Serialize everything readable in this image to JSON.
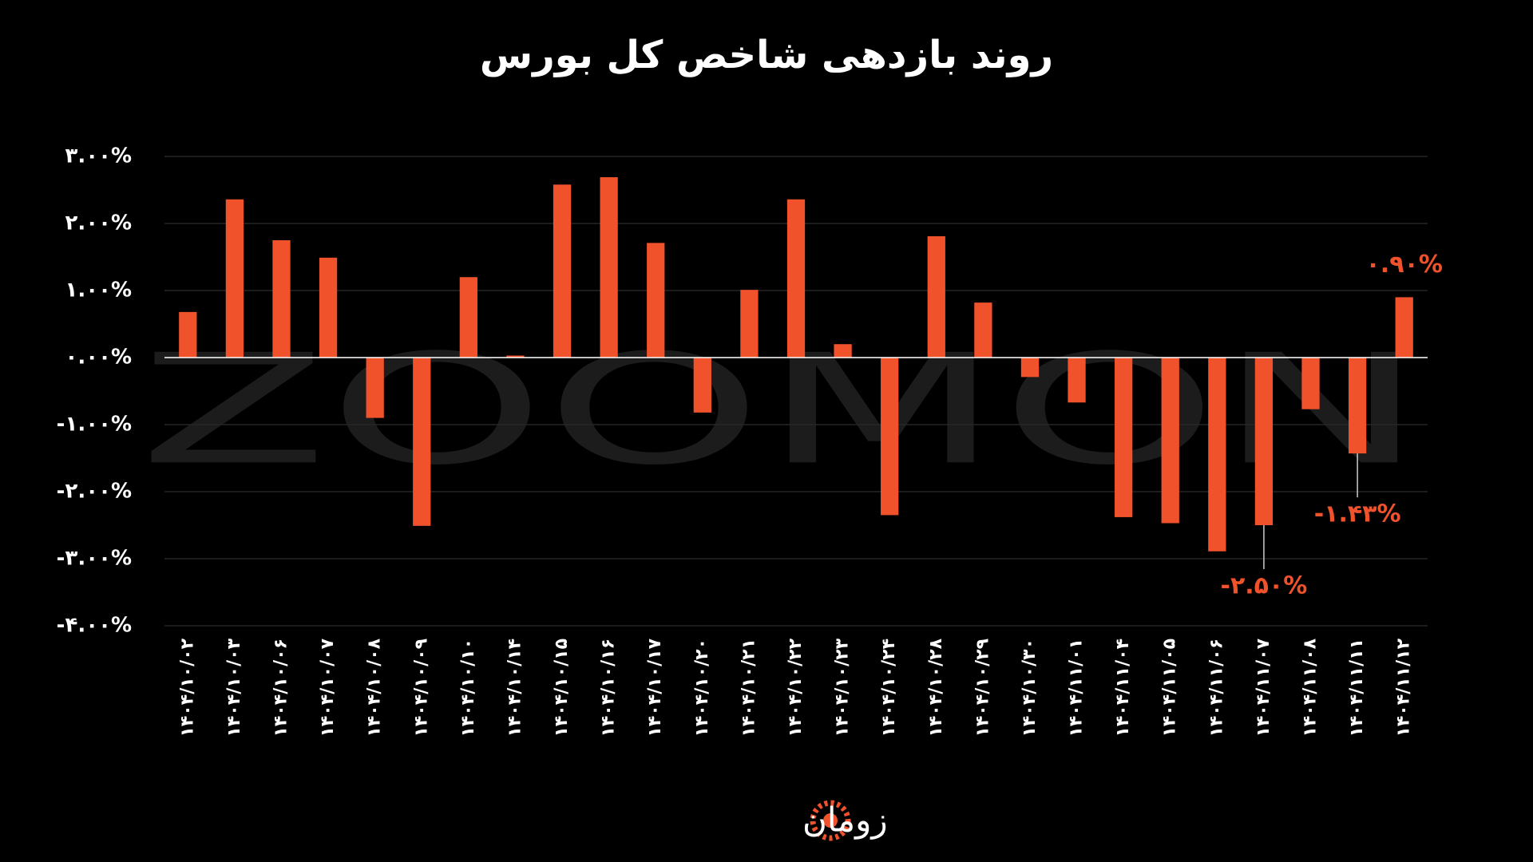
{
  "chart_data": {
    "type": "bar",
    "title": "روند بازدهی شاخص کل بورس",
    "watermark": "ZOOMON",
    "brand": "زومان",
    "color": "#f0522c",
    "grid": true,
    "categories": [
      "۱۴۰۴/۱۰/۰۲",
      "۱۴۰۴/۱۰/۰۳",
      "۱۴۰۴/۱۰/۰۶",
      "۱۴۰۴/۱۰/۰۷",
      "۱۴۰۴/۱۰/۰۸",
      "۱۴۰۴/۱۰/۰۹",
      "۱۴۰۴/۱۰/۱۰",
      "۱۴۰۴/۱۰/۱۴",
      "۱۴۰۴/۱۰/۱۵",
      "۱۴۰۴/۱۰/۱۶",
      "۱۴۰۴/۱۰/۱۷",
      "۱۴۰۴/۱۰/۲۰",
      "۱۴۰۴/۱۰/۲۱",
      "۱۴۰۴/۱۰/۲۲",
      "۱۴۰۴/۱۰/۲۳",
      "۱۴۰۴/۱۰/۲۴",
      "۱۴۰۴/۱۰/۲۸",
      "۱۴۰۴/۱۰/۲۹",
      "۱۴۰۴/۱۰/۳۰",
      "۱۴۰۴/۱۱/۰۱",
      "۱۴۰۴/۱۱/۰۴",
      "۱۴۰۴/۱۱/۰۵",
      "۱۴۰۴/۱۱/۰۶",
      "۱۴۰۴/۱۱/۰۷",
      "۱۴۰۴/۱۱/۰۸",
      "۱۴۰۴/۱۱/۱۱",
      "۱۴۰۴/۱۱/۱۲"
    ],
    "values": [
      0.68,
      2.36,
      1.75,
      1.49,
      -0.9,
      -2.51,
      1.2,
      0.03,
      2.58,
      2.69,
      1.71,
      -0.82,
      1.01,
      2.36,
      0.2,
      -2.35,
      1.81,
      0.82,
      -0.29,
      -0.67,
      -2.38,
      -2.47,
      -2.89,
      -2.5,
      -0.77,
      -1.43,
      0.9
    ],
    "value_labels": [
      null,
      null,
      null,
      null,
      null,
      null,
      null,
      null,
      null,
      null,
      null,
      null,
      null,
      null,
      null,
      null,
      null,
      null,
      null,
      null,
      null,
      null,
      null,
      "-۲.۵۰%",
      null,
      "-۱.۴۳%",
      "۰.۹۰%"
    ],
    "ylim": [
      -4,
      3
    ],
    "yticks": [
      {
        "value": 3,
        "label": "۳.۰۰%"
      },
      {
        "value": 2,
        "label": "۲.۰۰%"
      },
      {
        "value": 1,
        "label": "۱.۰۰%"
      },
      {
        "value": 0,
        "label": "۰.۰۰%"
      },
      {
        "value": -1,
        "label": "-۱.۰۰%"
      },
      {
        "value": -2,
        "label": "-۲.۰۰%"
      },
      {
        "value": -3,
        "label": "-۳.۰۰%"
      },
      {
        "value": -4,
        "label": "-۴.۰۰%"
      }
    ]
  }
}
